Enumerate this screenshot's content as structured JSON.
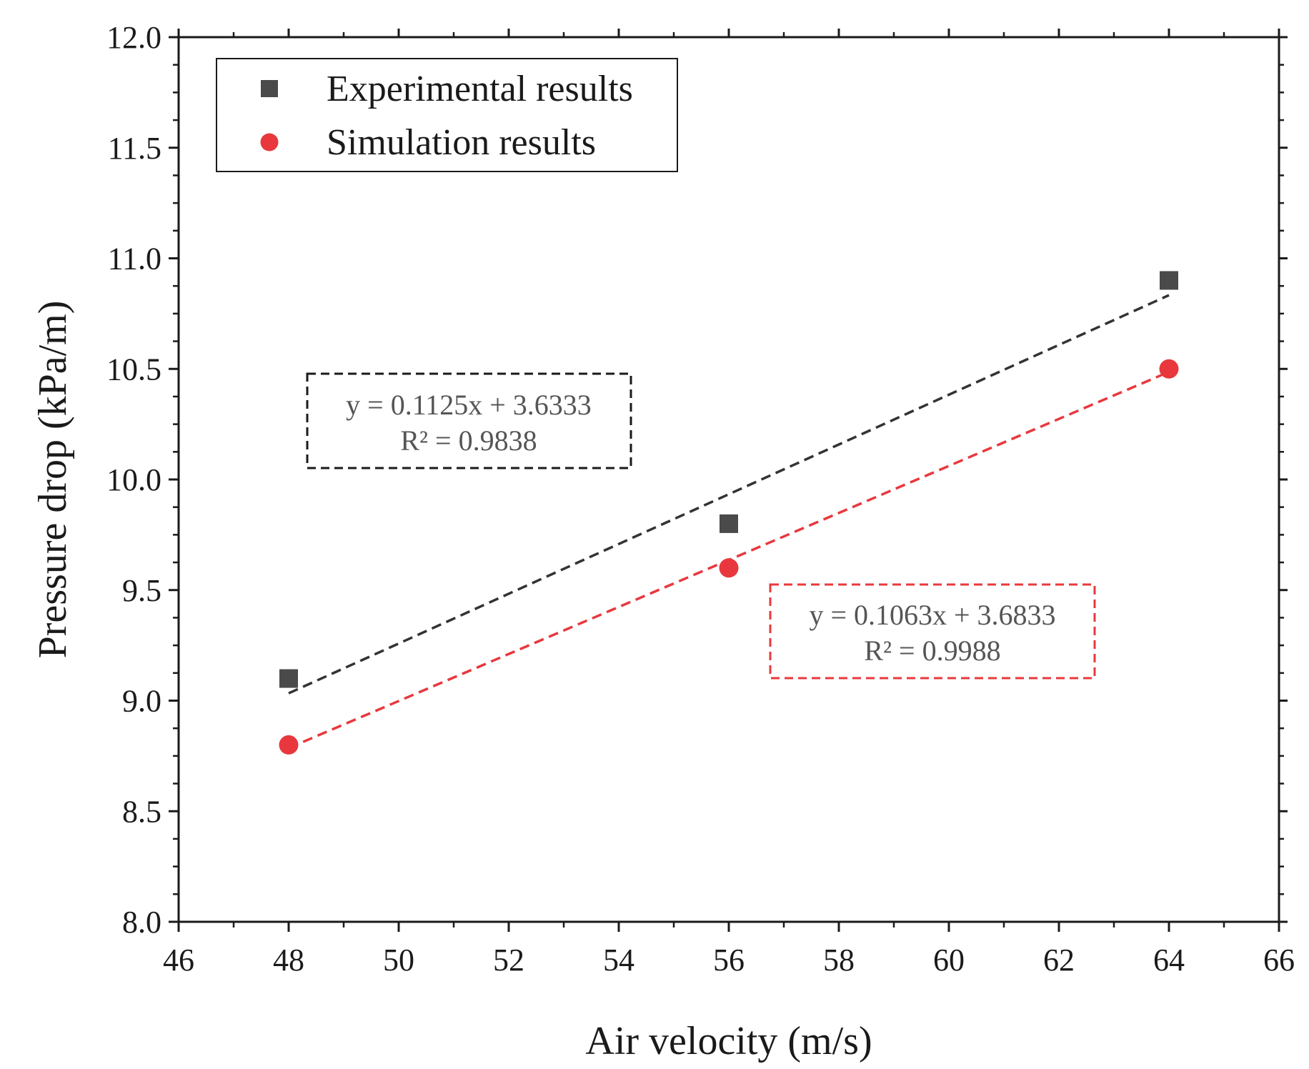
{
  "chart_data": {
    "type": "scatter",
    "title": "",
    "xlabel": "Air velocity (m/s)",
    "ylabel": "Pressure drop (kPa/m)",
    "xlim": [
      46,
      66
    ],
    "ylim": [
      8.0,
      12.0
    ],
    "xticks": [
      46,
      48,
      50,
      52,
      54,
      56,
      58,
      60,
      62,
      64,
      66
    ],
    "xtick_labels": [
      "46",
      "48",
      "50",
      "52",
      "54",
      "56",
      "58",
      "60",
      "62",
      "64",
      "66"
    ],
    "yticks": [
      8.0,
      8.5,
      9.0,
      9.5,
      10.0,
      10.5,
      11.0,
      11.5,
      12.0
    ],
    "ytick_labels": [
      "8.0",
      "8.5",
      "9.0",
      "9.5",
      "10.0",
      "10.5",
      "11.0",
      "11.5",
      "12.0"
    ],
    "legend_position": "top-left",
    "series": [
      {
        "name": "Experimental results",
        "marker": "square",
        "color": "#4a4a4a",
        "x": [
          48,
          56,
          64
        ],
        "y": [
          9.1,
          9.8,
          10.9
        ],
        "fit": {
          "slope": 0.1125,
          "intercept": 3.6333,
          "equation": "y = 0.1125x + 3.6333",
          "r2": "R² = 0.9838",
          "color": "#333333"
        }
      },
      {
        "name": "Simulation results",
        "marker": "circle",
        "color": "#e8383d",
        "x": [
          48,
          56,
          64
        ],
        "y": [
          8.8,
          9.6,
          10.5
        ],
        "fit": {
          "slope": 0.1063,
          "intercept": 3.6833,
          "equation": "y = 0.1063x + 3.6833",
          "r2": "R² = 0.9988",
          "color": "#e8383d"
        }
      }
    ]
  }
}
